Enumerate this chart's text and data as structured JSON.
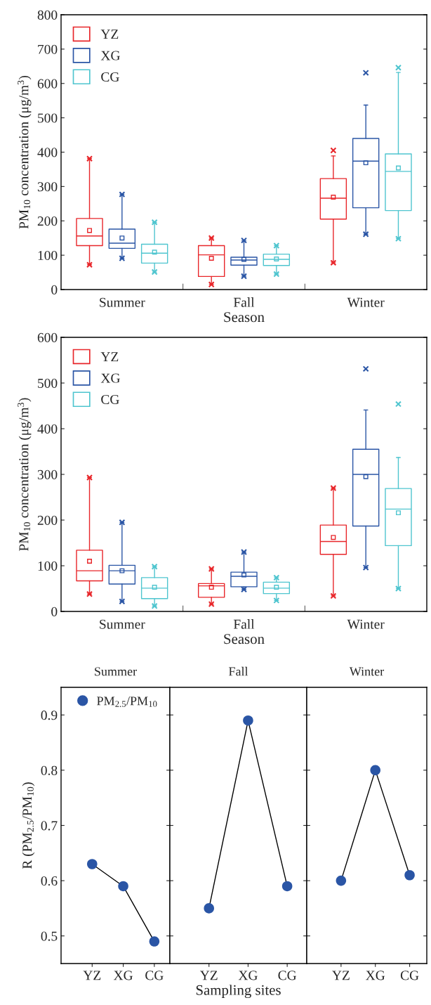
{
  "chart_data": [
    {
      "type": "box",
      "categories": [
        "Summer",
        "Fall",
        "Winter"
      ],
      "xlabel": "Season",
      "ylabel": "PM$_{10}$ concentration (μg/m$^{3}$)",
      "ylim": [
        0,
        800
      ],
      "yticks": [
        0,
        100,
        200,
        300,
        400,
        500,
        600,
        700,
        800
      ],
      "legend": "top left",
      "series": [
        {
          "name": "YZ",
          "color": "#e8262a",
          "boxes": [
            {
              "low": 72,
              "q1": 128,
              "median": 156,
              "q3": 207,
              "high": 381,
              "mean": 172,
              "outliers": [
                72,
                381
              ]
            },
            {
              "low": 15,
              "q1": 38,
              "median": 101,
              "q3": 128,
              "high": 150,
              "mean": 91,
              "outliers": [
                15,
                150
              ]
            },
            {
              "low": 78,
              "q1": 205,
              "median": 266,
              "q3": 323,
              "high": 389,
              "mean": 269,
              "outliers": [
                78,
                405
              ]
            }
          ]
        },
        {
          "name": "XG",
          "color": "#2a55a5",
          "boxes": [
            {
              "low": 91,
              "q1": 120,
              "median": 135,
              "q3": 176,
              "high": 277,
              "mean": 150,
              "outliers": [
                91,
                277
              ]
            },
            {
              "low": 39,
              "q1": 71,
              "median": 86,
              "q3": 94,
              "high": 143,
              "mean": 88,
              "outliers": [
                39,
                143
              ]
            },
            {
              "low": 161,
              "q1": 238,
              "median": 374,
              "q3": 440,
              "high": 537,
              "mean": 369,
              "outliers": [
                161,
                631
              ]
            }
          ]
        },
        {
          "name": "CG",
          "color": "#4fc5cf",
          "boxes": [
            {
              "low": 51,
              "q1": 77,
              "median": 106,
              "q3": 132,
              "high": 196,
              "mean": 109,
              "outliers": [
                51,
                196
              ]
            },
            {
              "low": 45,
              "q1": 70,
              "median": 88,
              "q3": 103,
              "high": 128,
              "mean": 89,
              "outliers": [
                45,
                128
              ]
            },
            {
              "low": 148,
              "q1": 230,
              "median": 344,
              "q3": 395,
              "high": 632,
              "mean": 354,
              "outliers": [
                148,
                646
              ]
            }
          ]
        }
      ]
    },
    {
      "type": "box",
      "categories": [
        "Summer",
        "Fall",
        "Winter"
      ],
      "xlabel": "Season",
      "ylabel": "PM$_{10}$ concentration (μg/m$^{3}$)",
      "ylim": [
        0,
        600
      ],
      "yticks": [
        0,
        100,
        200,
        300,
        400,
        500,
        600
      ],
      "legend": "top left",
      "series": [
        {
          "name": "YZ",
          "color": "#e8262a",
          "boxes": [
            {
              "low": 38,
              "q1": 67,
              "median": 89,
              "q3": 134,
              "high": 293,
              "mean": 110,
              "outliers": [
                38,
                293
              ]
            },
            {
              "low": 16,
              "q1": 31,
              "median": 56,
              "q3": 61,
              "high": 93,
              "mean": 53,
              "outliers": [
                16,
                93
              ]
            },
            {
              "low": 34,
              "q1": 125,
              "median": 153,
              "q3": 189,
              "high": 270,
              "mean": 162,
              "outliers": [
                34,
                270
              ]
            }
          ]
        },
        {
          "name": "XG",
          "color": "#2a55a5",
          "boxes": [
            {
              "low": 22,
              "q1": 60,
              "median": 89,
              "q3": 101,
              "high": 195,
              "mean": 89,
              "outliers": [
                22,
                195
              ]
            },
            {
              "low": 48,
              "q1": 54,
              "median": 77,
              "q3": 86,
              "high": 130,
              "mean": 80,
              "outliers": [
                48,
                130
              ]
            },
            {
              "low": 96,
              "q1": 187,
              "median": 300,
              "q3": 355,
              "high": 441,
              "mean": 295,
              "outliers": [
                96,
                531
              ]
            }
          ]
        },
        {
          "name": "CG",
          "color": "#4fc5cf",
          "boxes": [
            {
              "low": 12,
              "q1": 28,
              "median": 51,
              "q3": 74,
              "high": 98,
              "mean": 53,
              "outliers": [
                12,
                98
              ]
            },
            {
              "low": 24,
              "q1": 39,
              "median": 51,
              "q3": 64,
              "high": 74,
              "mean": 53,
              "outliers": [
                24,
                74
              ]
            },
            {
              "low": 50,
              "q1": 144,
              "median": 224,
              "q3": 269,
              "high": 337,
              "mean": 216,
              "outliers": [
                50,
                454
              ]
            }
          ]
        }
      ]
    },
    {
      "type": "line",
      "title": "Summer",
      "categories": [
        "YZ",
        "XG",
        "CG"
      ],
      "ylabel": "R (PM$_{2.5}$/PM$_{10}$)",
      "ylim": [
        0.45,
        0.95
      ],
      "yticks": [
        0.5,
        0.6,
        0.7,
        0.8,
        0.9
      ],
      "marker": "circle",
      "legend": "top left",
      "series": [
        {
          "name": "PM$_{2.5}$/PM$_{10}$",
          "color": "#2a55a5",
          "values": [
            0.63,
            0.59,
            0.49
          ]
        }
      ]
    },
    {
      "type": "line",
      "title": "Fall",
      "categories": [
        "YZ",
        "XG",
        "CG"
      ],
      "xlabel": "Sampling sites",
      "ylim": [
        0.45,
        0.95
      ],
      "yticks": [
        0.5,
        0.6,
        0.7,
        0.8,
        0.9
      ],
      "marker": "circle",
      "tick_labels": "x",
      "series": [
        {
          "color": "#2a55a5",
          "values": [
            0.55,
            0.89,
            0.59
          ]
        }
      ]
    },
    {
      "type": "line",
      "title": "Winter",
      "categories": [
        "YZ",
        "XG",
        "CG"
      ],
      "ylim": [
        0.45,
        0.95
      ],
      "yticks": [
        0.5,
        0.6,
        0.7,
        0.8,
        0.9
      ],
      "marker": "circle",
      "tick_labels": "x",
      "series": [
        {
          "color": "#2a55a5",
          "values": [
            0.6,
            0.8,
            0.61
          ]
        }
      ]
    }
  ]
}
